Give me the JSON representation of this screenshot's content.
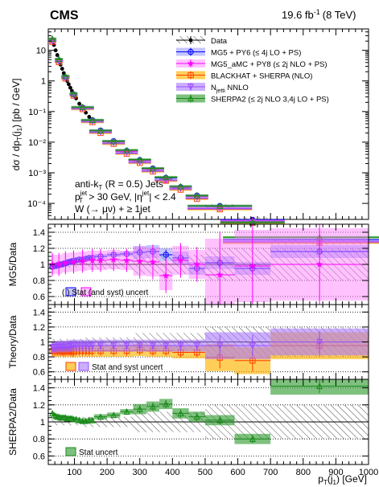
{
  "header": {
    "experiment": "CMS",
    "lumi": "19.6 fb",
    "lumi_exp": "-1",
    "energy": "(8 TeV)"
  },
  "main_panel": {
    "ylabel": {
      "lead": "dσ / dp",
      "sub1": "T",
      "mid": "(j",
      "sub2": "1",
      "tail": ")  [pb / GeV]"
    },
    "annotation": {
      "line1": "anti-k",
      "line1_sub": "T",
      "line1_tail": " (R = 0.5) Jets",
      "line2_a": "p",
      "line2_sup": "jet",
      "line2_sub": "T",
      "line2_b": " > 30 GeV, |η",
      "line2_sup2": "jet",
      "line2_c": "| < 2.4",
      "line3": "W (→ μν) + ≥ 1jet"
    },
    "legend": [
      {
        "key": "data",
        "label": "Data",
        "color": "#000000"
      },
      {
        "key": "mg5",
        "label": "MG5 + PY6 (≤ 4j LO + PS)",
        "color": "#0000ff"
      },
      {
        "key": "amc",
        "label": "MG5_aMC + PY8 (≤ 2j NLO + PS)",
        "color": "#ff00ff"
      },
      {
        "key": "bh",
        "label": "BLACKHAT + SHERPA (NLO)",
        "color": "#ff4000"
      },
      {
        "key": "nj",
        "label": "N",
        "label_sub": "jetti",
        "label_tail": " NNLO",
        "color": "#9b4dff"
      },
      {
        "key": "sh",
        "label": "SHERPA2 (≤ 2j NLO 3,4j LO + PS)",
        "color": "#1a8a1a"
      }
    ]
  },
  "ratio_panels": [
    {
      "ylabel": "MG5/Data",
      "legend": "(      ) Stat (and syst) uncert"
    },
    {
      "ylabel": "Theory/Data",
      "legend": "Stat and syst uncert"
    },
    {
      "ylabel": "SHERPA2/Data",
      "legend": "Stat uncert"
    }
  ],
  "xaxis": {
    "label": "p",
    "label_sub": "T",
    "label_tail": "(j",
    "label_sub2": "1",
    "label_end": ") [GeV]"
  },
  "chart_data": [
    {
      "type": "line",
      "title": "",
      "xlabel": "pT(j1) [GeV]",
      "ylabel": "dσ / dpT(j1) [pb / GeV]",
      "xlim": [
        20,
        1000
      ],
      "ylim": [
        3e-05,
        50
      ],
      "log_y": true,
      "yticks": [
        0.0001,
        0.001,
        0.01,
        0.1,
        1,
        10
      ],
      "ytick_labels": [
        "10⁻⁴",
        "10⁻³",
        "10⁻²",
        "10⁻¹",
        "1",
        "10"
      ],
      "xticks": [
        100,
        200,
        300,
        400,
        500,
        600,
        700,
        800,
        900,
        1000
      ],
      "bins_fine": [
        30,
        35,
        40,
        45,
        50,
        55,
        60,
        65,
        70,
        75,
        80,
        85,
        90,
        95,
        100,
        110,
        120,
        130,
        140,
        150,
        160
      ],
      "bins_coarse": [
        160,
        200,
        240,
        280,
        320,
        360,
        400,
        450,
        500,
        590,
        700,
        1000
      ],
      "legend_position": "top-right",
      "series": [
        {
          "name": "Data",
          "x": [
            32.5,
            37.5,
            42.5,
            47.5,
            52.5,
            57.5,
            62.5,
            67.5,
            72.5,
            77.5,
            82.5,
            87.5,
            92.5,
            97.5,
            105,
            115,
            125,
            135,
            145,
            155,
            180,
            220,
            260,
            300,
            340,
            380,
            425,
            475,
            545,
            645,
            850
          ],
          "y": [
            22,
            15,
            10,
            7,
            4.8,
            3.4,
            2.5,
            1.8,
            1.35,
            1.0,
            0.78,
            0.6,
            0.47,
            0.37,
            0.27,
            0.18,
            0.13,
            0.092,
            0.067,
            0.05,
            0.022,
            0.01,
            0.0046,
            0.0023,
            0.0012,
            0.00062,
            0.00032,
            0.00017,
            8e-05,
            3e-05,
            5.5e-06
          ]
        },
        {
          "name": "MG5 + PY6 (≤ 4j LO + PS)",
          "x": [
            32.5,
            52.5,
            72.5,
            97.5,
            125,
            155,
            180,
            220,
            260,
            300,
            340,
            380,
            425,
            475,
            545,
            645,
            850
          ],
          "y": [
            21,
            4.6,
            1.3,
            0.36,
            0.135,
            0.052,
            0.024,
            0.0108,
            0.0052,
            0.0026,
            0.00138,
            0.00068,
            0.00034,
            0.00018,
            8.2e-05,
            2.9e-05,
            6.5e-06
          ]
        },
        {
          "name": "MG5_aMC + PY8 (≤ 2j NLO + PS)",
          "x": [
            32.5,
            52.5,
            72.5,
            97.5,
            125,
            155,
            180,
            220,
            260,
            300,
            340,
            380,
            425,
            475,
            545,
            645,
            850
          ],
          "y": [
            20,
            4.5,
            1.3,
            0.36,
            0.13,
            0.05,
            0.023,
            0.0104,
            0.005,
            0.0025,
            0.0013,
            0.00055,
            0.00034,
            0.00017,
            7e-05,
            2.7e-05,
            5.5e-06
          ]
        },
        {
          "name": "BLACKHAT + SHERPA (NLO)",
          "x": [
            32.5,
            52.5,
            72.5,
            97.5,
            125,
            155,
            180,
            220,
            260,
            300,
            340,
            380,
            425,
            475,
            545,
            645,
            850
          ],
          "y": [
            19,
            4.1,
            1.2,
            0.33,
            0.12,
            0.045,
            0.02,
            0.0088,
            0.0042,
            0.0021,
            0.0011,
            0.00055,
            0.00028,
            0.00014,
            6.4e-05,
            2.3e-05,
            5.2e-06
          ]
        },
        {
          "name": "Njetti NNLO",
          "x": [
            32.5,
            52.5,
            72.5,
            97.5,
            125,
            155,
            180,
            220,
            260,
            300,
            340,
            380,
            425,
            475,
            545,
            645,
            850
          ],
          "y": [
            20,
            4.4,
            1.25,
            0.35,
            0.125,
            0.047,
            0.021,
            0.0093,
            0.0044,
            0.0022,
            0.00115,
            0.00058,
            0.0003,
            0.00015,
            6.8e-05,
            2.5e-05,
            5.6e-06
          ]
        },
        {
          "name": "SHERPA2 (≤ 2j NLO 3,4j LO + PS)",
          "x": [
            32.5,
            52.5,
            72.5,
            97.5,
            125,
            155,
            180,
            220,
            260,
            300,
            340,
            380,
            425,
            475,
            545,
            645,
            850
          ],
          "y": [
            24,
            5.2,
            1.45,
            0.39,
            0.14,
            0.053,
            0.024,
            0.0108,
            0.0055,
            0.0027,
            0.0014,
            0.00072,
            0.00036,
            0.00018,
            8.3e-05,
            2.4e-05,
            7.8e-06
          ]
        }
      ]
    },
    {
      "type": "line",
      "ylabel": "MG5/Data",
      "xlim": [
        20,
        1000
      ],
      "ylim": [
        0.5,
        1.5
      ],
      "yticks": [
        0.6,
        0.8,
        1,
        1.2,
        1.4
      ],
      "ytick_labels": [
        "0.6",
        "0.8",
        "1",
        "1.2",
        "1.4"
      ],
      "series": [
        {
          "name": "MG5 + PY6 (≤ 4j LO + PS)",
          "x": [
            32.5,
            37.5,
            42.5,
            47.5,
            52.5,
            57.5,
            62.5,
            67.5,
            72.5,
            77.5,
            82.5,
            87.5,
            92.5,
            97.5,
            105,
            115,
            125,
            135,
            145,
            155,
            180,
            220,
            260,
            300,
            340,
            380,
            425,
            475,
            545,
            645,
            850
          ],
          "y": [
            0.97,
            0.98,
            0.98,
            0.99,
            0.99,
            1.0,
            1.0,
            1.01,
            1.01,
            1.02,
            1.03,
            1.03,
            1.04,
            1.04,
            1.05,
            1.06,
            1.06,
            1.07,
            1.08,
            1.08,
            1.1,
            1.12,
            1.13,
            1.15,
            1.16,
            1.12,
            1.08,
            0.95,
            1.02,
            0.95,
            1.16
          ]
        },
        {
          "name": "MG5_aMC + PY8 (≤ 2j NLO + PS)",
          "x": [
            32.5,
            52.5,
            72.5,
            97.5,
            125,
            155,
            180,
            220,
            260,
            300,
            340,
            380,
            425,
            475,
            545,
            645,
            850
          ],
          "y": [
            1.0,
            1.0,
            1.02,
            1.03,
            1.04,
            1.05,
            1.05,
            1.06,
            1.05,
            1.04,
            1.03,
            0.86,
            1.05,
            1.0,
            0.87,
            0.98,
            1.0
          ]
        }
      ]
    },
    {
      "type": "line",
      "ylabel": "Theory/Data",
      "xlim": [
        20,
        1000
      ],
      "ylim": [
        0.5,
        1.5
      ],
      "yticks": [
        0.6,
        0.8,
        1,
        1.2,
        1.4
      ],
      "ytick_labels": [
        "0.6",
        "0.8",
        "1",
        "1.2",
        "1.4"
      ],
      "series": [
        {
          "name": "BLACKHAT + SHERPA (NLO)",
          "x": [
            32.5,
            37.5,
            42.5,
            47.5,
            52.5,
            57.5,
            62.5,
            67.5,
            72.5,
            77.5,
            82.5,
            87.5,
            92.5,
            97.5,
            105,
            115,
            125,
            135,
            145,
            155,
            180,
            220,
            260,
            300,
            340,
            380,
            425,
            475,
            545,
            645,
            850
          ],
          "y": [
            0.88,
            0.88,
            0.88,
            0.88,
            0.88,
            0.88,
            0.88,
            0.87,
            0.88,
            0.88,
            0.88,
            0.88,
            0.87,
            0.87,
            0.88,
            0.88,
            0.88,
            0.88,
            0.88,
            0.88,
            0.88,
            0.88,
            0.88,
            0.89,
            0.88,
            0.88,
            0.86,
            0.86,
            0.79,
            0.75,
            0.95
          ]
        },
        {
          "name": "Njetti NNLO",
          "x": [
            32.5,
            37.5,
            42.5,
            47.5,
            52.5,
            57.5,
            62.5,
            67.5,
            72.5,
            77.5,
            82.5,
            87.5,
            92.5,
            97.5,
            105,
            115,
            125,
            135,
            145,
            155,
            180,
            220,
            260,
            300,
            340,
            380,
            425,
            475,
            545,
            645,
            850
          ],
          "y": [
            0.93,
            0.93,
            0.93,
            0.94,
            0.94,
            0.94,
            0.94,
            0.94,
            0.94,
            0.94,
            0.94,
            0.95,
            0.95,
            0.95,
            0.95,
            0.95,
            0.95,
            0.95,
            0.95,
            0.95,
            0.95,
            0.95,
            0.95,
            0.95,
            0.95,
            0.95,
            0.95,
            0.95,
            0.95,
            0.95,
            1.0
          ]
        }
      ]
    },
    {
      "type": "line",
      "ylabel": "SHERPA2/Data",
      "xlim": [
        20,
        1000
      ],
      "ylim": [
        0.5,
        1.5
      ],
      "yticks": [
        0.6,
        0.8,
        1,
        1.2,
        1.4
      ],
      "ytick_labels": [
        "0.6",
        "0.8",
        "1",
        "1.2",
        "1.4"
      ],
      "series": [
        {
          "name": "SHERPA2 (≤ 2j NLO 3,4j LO + PS)",
          "x": [
            32.5,
            37.5,
            42.5,
            47.5,
            52.5,
            57.5,
            62.5,
            67.5,
            72.5,
            77.5,
            82.5,
            87.5,
            92.5,
            97.5,
            105,
            115,
            125,
            135,
            145,
            155,
            180,
            220,
            260,
            300,
            340,
            380,
            425,
            475,
            545,
            645,
            850
          ],
          "y": [
            1.1,
            1.08,
            1.07,
            1.06,
            1.06,
            1.05,
            1.05,
            1.05,
            1.05,
            1.04,
            1.04,
            1.04,
            1.04,
            1.03,
            1.03,
            1.02,
            1.01,
            1.01,
            1.02,
            1.02,
            1.06,
            1.08,
            1.12,
            1.15,
            1.18,
            1.21,
            1.1,
            1.06,
            1.02,
            0.8,
            1.42
          ]
        }
      ]
    }
  ]
}
